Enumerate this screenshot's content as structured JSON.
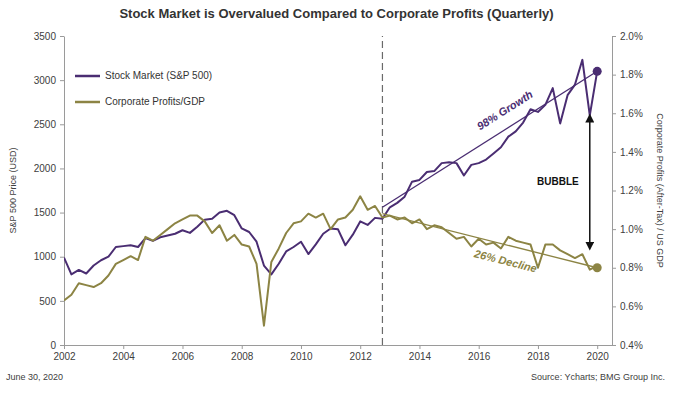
{
  "chart_data": {
    "type": "line",
    "title": "Stock Market is Overvalued Compared to Corporate Profits (Quarterly)",
    "ylabel": "S&P 500 Price (USD)",
    "y2label": "Corporate Profits (After-Tax) / US GDP",
    "date": "June 30, 2020",
    "source": "Source: Ycharts; BMG Group Inc.",
    "x": [
      2002,
      2002.25,
      2002.5,
      2002.75,
      2003,
      2003.25,
      2003.5,
      2003.75,
      2004,
      2004.25,
      2004.5,
      2004.75,
      2005,
      2005.25,
      2005.5,
      2005.75,
      2006,
      2006.25,
      2006.5,
      2006.75,
      2007,
      2007.25,
      2007.5,
      2007.75,
      2008,
      2008.25,
      2008.5,
      2008.75,
      2009,
      2009.25,
      2009.5,
      2009.75,
      2010,
      2010.25,
      2010.5,
      2010.75,
      2011,
      2011.25,
      2011.5,
      2011.75,
      2012,
      2012.25,
      2012.5,
      2012.75,
      2013,
      2013.25,
      2013.5,
      2013.75,
      2014,
      2014.25,
      2014.5,
      2014.75,
      2015,
      2015.25,
      2015.5,
      2015.75,
      2016,
      2016.25,
      2016.5,
      2016.75,
      2017,
      2017.25,
      2017.5,
      2017.75,
      2018,
      2018.25,
      2018.5,
      2018.75,
      2019,
      2019.25,
      2019.5,
      2019.75,
      2020
    ],
    "series": [
      {
        "name": "Stock Market (S&P 500)",
        "color": "#4a2d72",
        "values": [
          990,
          800,
          850,
          810,
          900,
          960,
          1000,
          1110,
          1120,
          1130,
          1110,
          1210,
          1180,
          1220,
          1240,
          1260,
          1300,
          1270,
          1340,
          1420,
          1430,
          1500,
          1520,
          1470,
          1320,
          1280,
          1170,
          900,
          800,
          920,
          1060,
          1110,
          1170,
          1030,
          1140,
          1260,
          1320,
          1310,
          1130,
          1250,
          1400,
          1360,
          1440,
          1430,
          1560,
          1610,
          1680,
          1850,
          1870,
          1960,
          1970,
          2060,
          2070,
          2060,
          1920,
          2040,
          2060,
          2100,
          2170,
          2240,
          2360,
          2420,
          2520,
          2670,
          2640,
          2720,
          2910,
          2510,
          2830,
          2950,
          3230,
          2600,
          3100
        ]
      },
      {
        "name": "Corporate Profits/GDP",
        "color": "#8c8444",
        "axis": "y2",
        "values": [
          0.63,
          0.66,
          0.72,
          0.71,
          0.7,
          0.72,
          0.76,
          0.82,
          0.84,
          0.86,
          0.84,
          0.96,
          0.94,
          0.97,
          1.0,
          1.03,
          1.05,
          1.07,
          1.07,
          1.04,
          0.98,
          1.02,
          0.94,
          0.97,
          0.92,
          0.91,
          0.82,
          0.5,
          0.83,
          0.9,
          0.98,
          1.03,
          1.04,
          1.08,
          1.06,
          1.08,
          1.0,
          1.05,
          1.06,
          1.1,
          1.17,
          1.1,
          1.12,
          1.06,
          1.07,
          1.05,
          1.06,
          1.03,
          1.05,
          1.0,
          1.02,
          1.01,
          0.98,
          0.95,
          0.96,
          0.91,
          0.95,
          0.92,
          0.93,
          0.9,
          0.96,
          0.94,
          0.93,
          0.92,
          0.8,
          0.92,
          0.92,
          0.89,
          0.87,
          0.85,
          0.87,
          0.79,
          0.81
        ]
      }
    ],
    "xlim": [
      2002,
      2020.5
    ],
    "xticks": [
      2002,
      2004,
      2006,
      2008,
      2010,
      2012,
      2014,
      2016,
      2018,
      2020
    ],
    "ylim": [
      0,
      3500
    ],
    "yticks": [
      0,
      500,
      1000,
      1500,
      2000,
      2500,
      3000,
      3500
    ],
    "y2lim": [
      0.4,
      2.0
    ],
    "y2ticks": [
      {
        "value": 0.4,
        "label": "0.4%"
      },
      {
        "value": 0.6,
        "label": "0.6%"
      },
      {
        "value": 0.8,
        "label": "0.8%"
      },
      {
        "value": 1.0,
        "label": "1.0%"
      },
      {
        "value": 1.2,
        "label": "1.2%"
      },
      {
        "value": 1.4,
        "label": "1.4%"
      },
      {
        "value": 1.6,
        "label": "1.6%"
      },
      {
        "value": 1.8,
        "label": "1.8%"
      },
      {
        "value": 2.0,
        "label": "2.0%"
      }
    ],
    "grid": false,
    "legend": "upper left",
    "vlines": [
      {
        "x": 2012.75,
        "line_style": "dashed"
      }
    ],
    "trend_lines": [
      {
        "axis": "y",
        "x": [
          2012.75,
          2020
        ],
        "values": [
          1560,
          3100
        ],
        "color": "#4a2d72",
        "marker": "circle",
        "text": "98% Growth",
        "text_x": 2016.9,
        "text_y": 2650
      },
      {
        "axis": "y2",
        "x": [
          2012.75,
          2020
        ],
        "values": [
          1.08,
          0.8
        ],
        "color": "#8c8444",
        "marker": "circle",
        "text": "26% Decline",
        "text_x": 2016.9,
        "text_y": 0.83
      }
    ],
    "arrows": [
      {
        "text": "BUBBLE",
        "x": 2019.75,
        "y_from": 2570,
        "y_to": 1120
      }
    ]
  }
}
